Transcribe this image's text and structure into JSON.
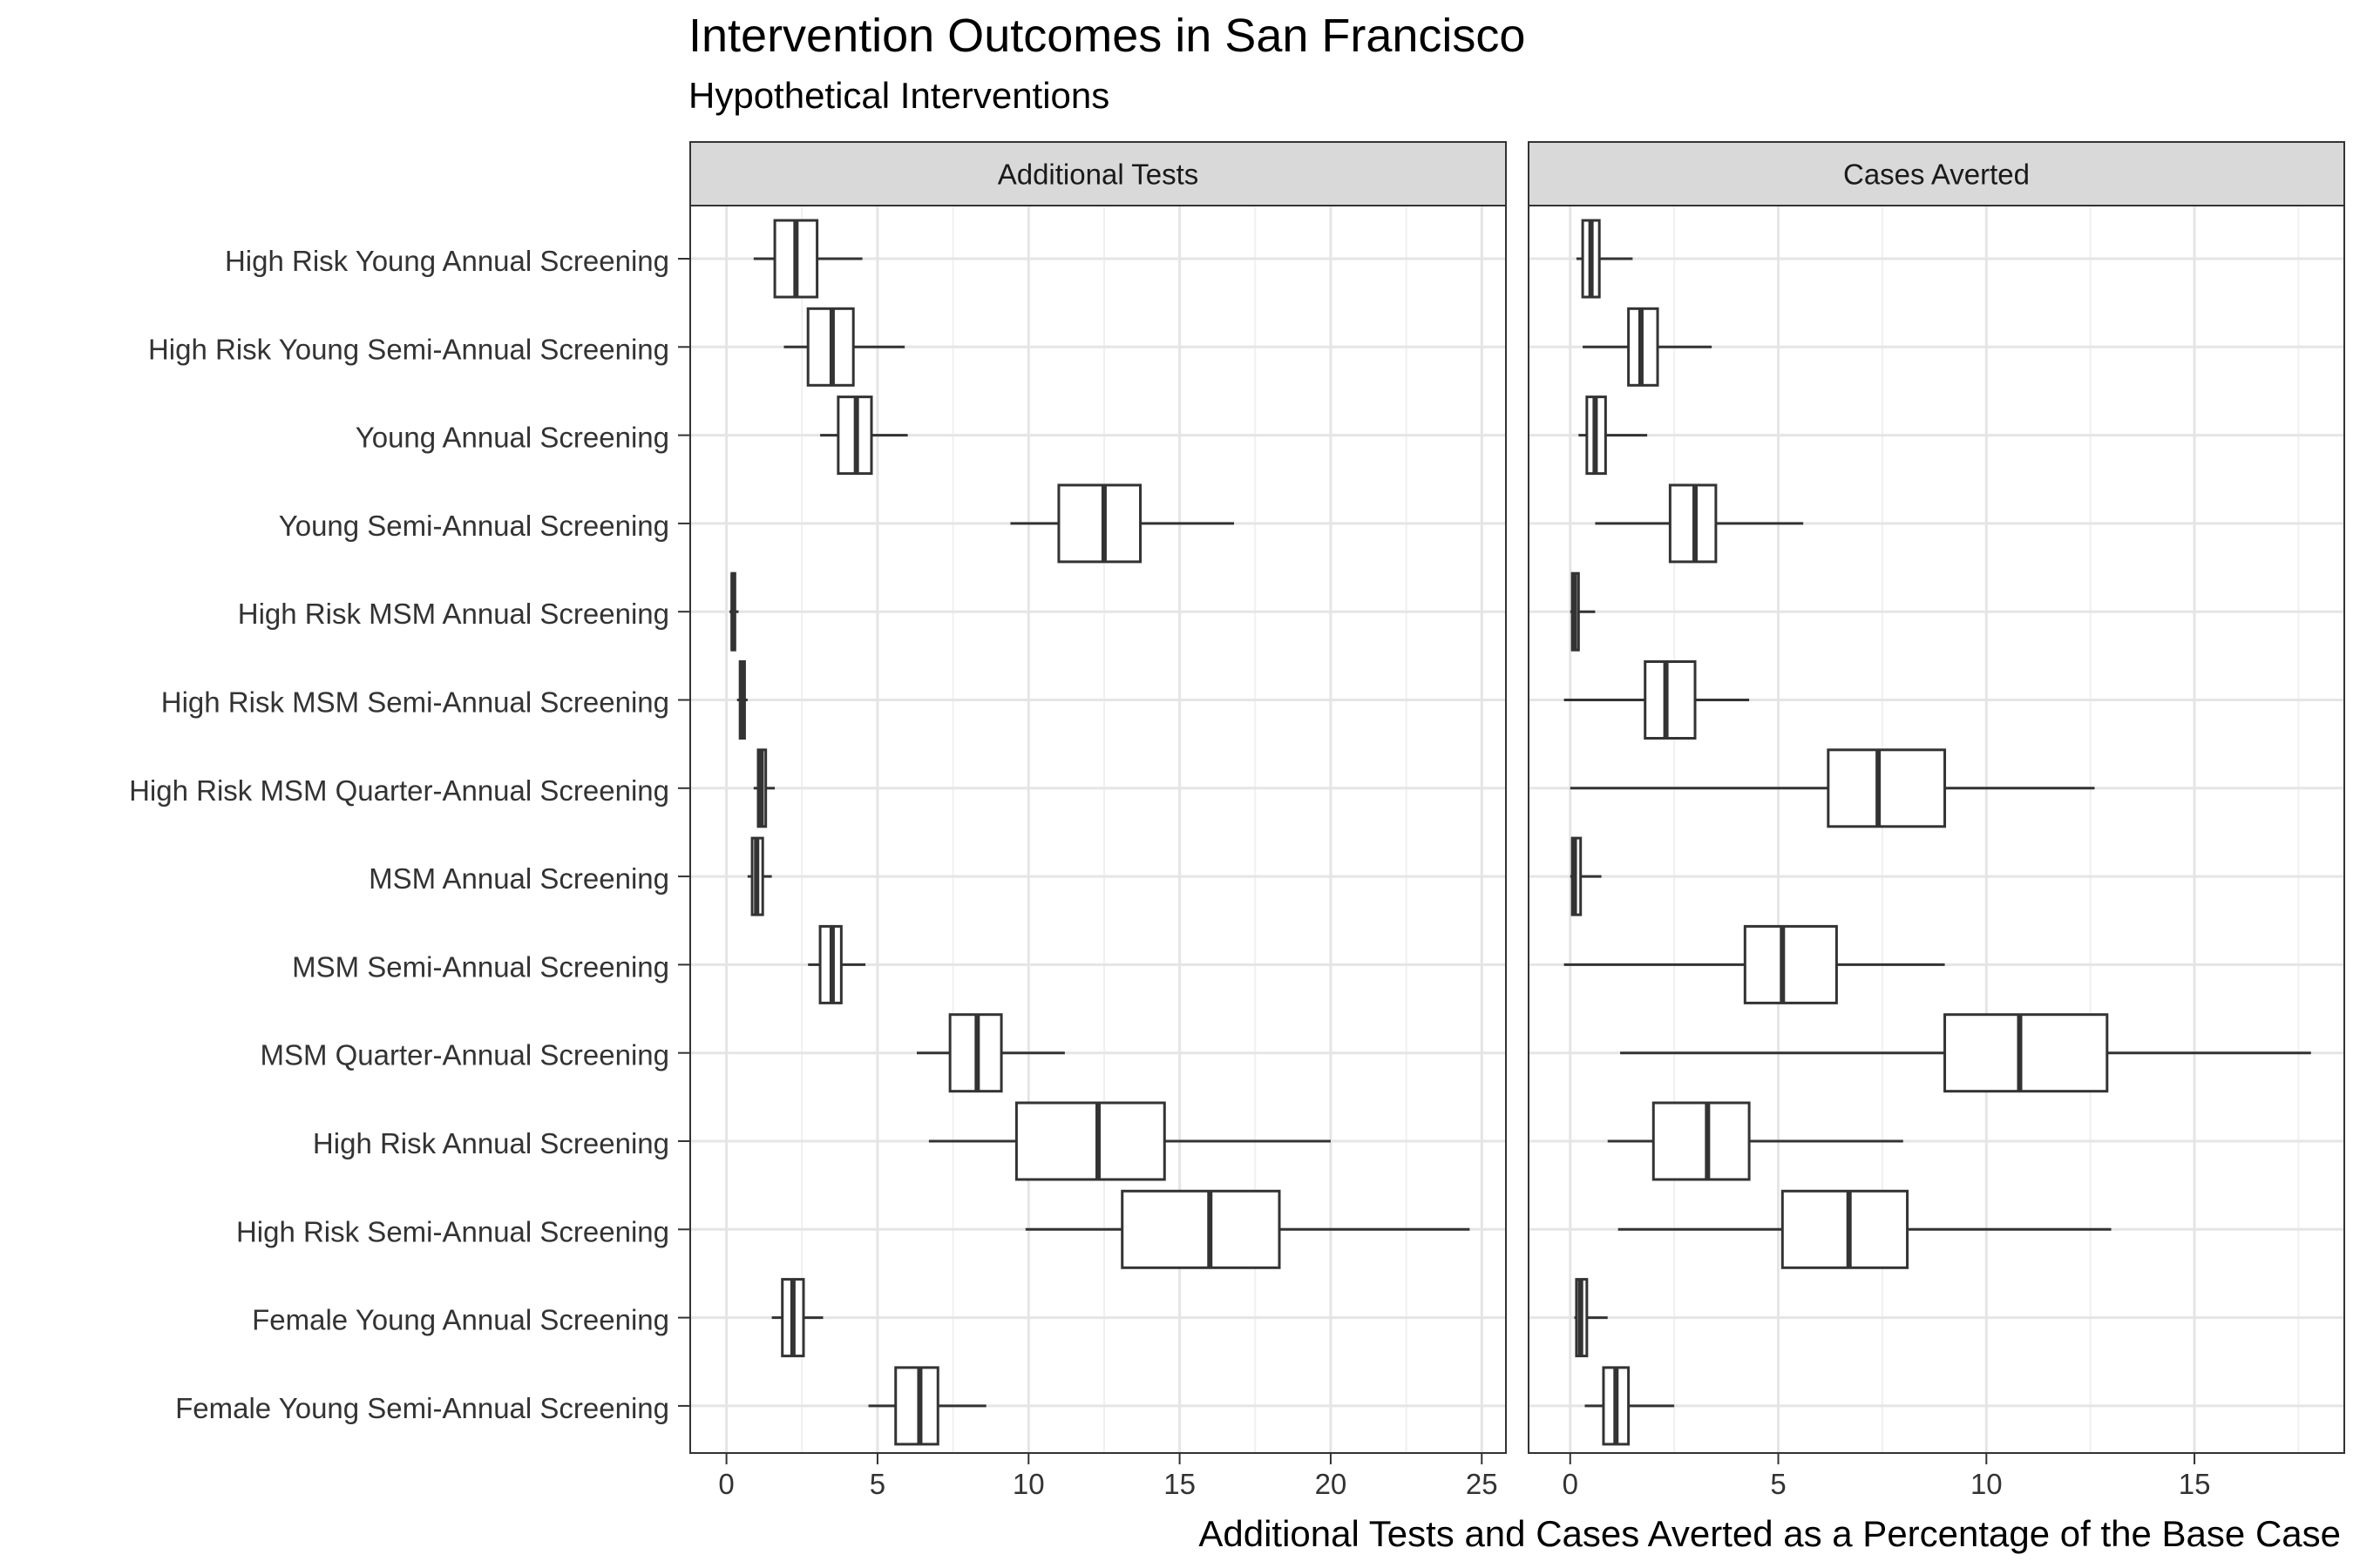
{
  "chart_data": {
    "type": "boxplot",
    "title": "Intervention Outcomes in San Francisco",
    "subtitle": "Hypothetical Interventions",
    "xlabel": "Additional Tests and Cases Averted as a Percentage of the Base Case",
    "ylabel": "",
    "grid": true,
    "categories": [
      "High Risk Young Annual Screening",
      "High Risk Young Semi-Annual Screening",
      "Young Annual Screening",
      "Young Semi-Annual Screening",
      "High Risk MSM Annual Screening",
      "High Risk MSM Semi-Annual Screening",
      "High Risk MSM Quarter-Annual Screening",
      "MSM Annual Screening",
      "MSM Semi-Annual Screening",
      "MSM Quarter-Annual Screening",
      "High Risk Annual Screening",
      "High Risk Semi-Annual Screening",
      "Female Young Annual Screening",
      "Female Young Semi-Annual Screening"
    ],
    "panels": [
      {
        "name": "Additional Tests",
        "xlim": [
          -1.2,
          25.8
        ],
        "xticks": [
          0,
          5,
          10,
          15,
          20,
          25
        ],
        "xtick_labels": [
          "0",
          "5",
          "10",
          "15",
          "20",
          "25"
        ],
        "boxes": [
          {
            "min": 0.9,
            "q1": 1.6,
            "median": 2.3,
            "q3": 3.0,
            "max": 4.5
          },
          {
            "min": 1.9,
            "q1": 2.7,
            "median": 3.5,
            "q3": 4.2,
            "max": 5.9
          },
          {
            "min": 3.1,
            "q1": 3.7,
            "median": 4.3,
            "q3": 4.8,
            "max": 6.0
          },
          {
            "min": 9.4,
            "q1": 11.0,
            "median": 12.5,
            "q3": 13.7,
            "max": 16.8
          },
          {
            "min": 0.1,
            "q1": 0.18,
            "median": 0.22,
            "q3": 0.28,
            "max": 0.4
          },
          {
            "min": 0.35,
            "q1": 0.45,
            "median": 0.52,
            "q3": 0.6,
            "max": 0.7
          },
          {
            "min": 0.9,
            "q1": 1.05,
            "median": 1.15,
            "q3": 1.3,
            "max": 1.6
          },
          {
            "min": 0.7,
            "q1": 0.85,
            "median": 1.0,
            "q3": 1.2,
            "max": 1.5
          },
          {
            "min": 2.7,
            "q1": 3.1,
            "median": 3.5,
            "q3": 3.8,
            "max": 4.6
          },
          {
            "min": 6.3,
            "q1": 7.4,
            "median": 8.3,
            "q3": 9.1,
            "max": 11.2
          },
          {
            "min": 6.7,
            "q1": 9.6,
            "median": 12.3,
            "q3": 14.5,
            "max": 20.0
          },
          {
            "min": 9.9,
            "q1": 13.1,
            "median": 16.0,
            "q3": 18.3,
            "max": 24.6
          },
          {
            "min": 1.5,
            "q1": 1.85,
            "median": 2.2,
            "q3": 2.55,
            "max": 3.2
          },
          {
            "min": 4.7,
            "q1": 5.6,
            "median": 6.4,
            "q3": 7.0,
            "max": 8.6
          }
        ]
      },
      {
        "name": "Cases Averted",
        "xlim": [
          -1.0,
          18.6
        ],
        "xticks": [
          0,
          5,
          10,
          15
        ],
        "xtick_labels": [
          "0",
          "5",
          "10",
          "15"
        ],
        "boxes": [
          {
            "min": 0.15,
            "q1": 0.3,
            "median": 0.5,
            "q3": 0.7,
            "max": 1.5
          },
          {
            "min": 0.3,
            "q1": 1.4,
            "median": 1.7,
            "q3": 2.1,
            "max": 3.4
          },
          {
            "min": 0.2,
            "q1": 0.4,
            "median": 0.6,
            "q3": 0.85,
            "max": 1.85
          },
          {
            "min": 0.6,
            "q1": 2.4,
            "median": 3.0,
            "q3": 3.5,
            "max": 5.6
          },
          {
            "min": 0.0,
            "q1": 0.05,
            "median": 0.1,
            "q3": 0.2,
            "max": 0.6
          },
          {
            "min": -0.15,
            "q1": 1.8,
            "median": 2.3,
            "q3": 3.0,
            "max": 4.3
          },
          {
            "min": 0.0,
            "q1": 6.2,
            "median": 7.4,
            "q3": 9.0,
            "max": 12.6
          },
          {
            "min": 0.0,
            "q1": 0.05,
            "median": 0.1,
            "q3": 0.25,
            "max": 0.75
          },
          {
            "min": -0.15,
            "q1": 4.2,
            "median": 5.1,
            "q3": 6.4,
            "max": 9.0
          },
          {
            "min": 1.2,
            "q1": 9.0,
            "median": 10.8,
            "q3": 12.9,
            "max": 17.8
          },
          {
            "min": 0.9,
            "q1": 2.0,
            "median": 3.3,
            "q3": 4.3,
            "max": 8.0
          },
          {
            "min": 1.15,
            "q1": 5.1,
            "median": 6.7,
            "q3": 8.1,
            "max": 13.0
          },
          {
            "min": 0.1,
            "q1": 0.15,
            "median": 0.25,
            "q3": 0.4,
            "max": 0.9
          },
          {
            "min": 0.35,
            "q1": 0.8,
            "median": 1.1,
            "q3": 1.4,
            "max": 2.5
          }
        ]
      }
    ]
  }
}
